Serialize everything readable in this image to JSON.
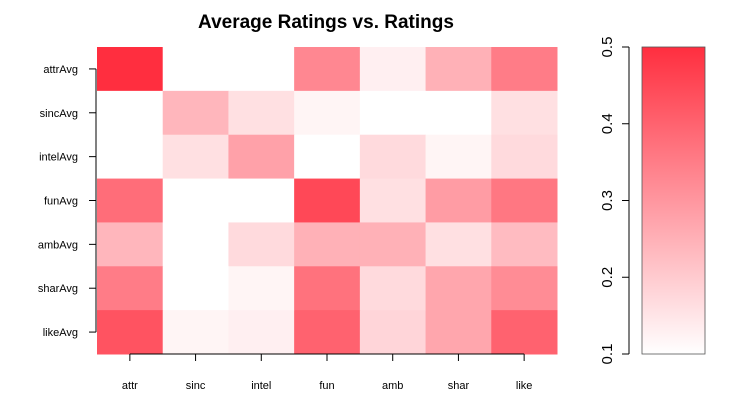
{
  "chart_data": {
    "type": "heatmap",
    "title": "Average Ratings vs. Ratings",
    "xlabel": "",
    "ylabel": "",
    "x_categories": [
      "attr",
      "sinc",
      "intel",
      "fun",
      "amb",
      "shar",
      "like"
    ],
    "y_categories": [
      "attrAvg",
      "sincAvg",
      "intelAvg",
      "funAvg",
      "ambAvg",
      "sharAvg",
      "likeAvg"
    ],
    "values": [
      [
        0.5,
        0.1,
        0.1,
        0.33,
        0.13,
        0.25,
        0.35
      ],
      [
        0.1,
        0.24,
        0.16,
        0.12,
        0.1,
        0.1,
        0.16
      ],
      [
        0.1,
        0.16,
        0.28,
        0.1,
        0.17,
        0.12,
        0.17
      ],
      [
        0.38,
        0.1,
        0.1,
        0.45,
        0.16,
        0.29,
        0.36
      ],
      [
        0.24,
        0.1,
        0.17,
        0.25,
        0.25,
        0.16,
        0.23
      ],
      [
        0.35,
        0.1,
        0.12,
        0.37,
        0.17,
        0.27,
        0.32
      ],
      [
        0.43,
        0.12,
        0.13,
        0.4,
        0.18,
        0.27,
        0.4
      ]
    ],
    "colorbar": {
      "range": [
        0.1,
        0.5
      ],
      "ticks": [
        "0.1",
        "0.2",
        "0.3",
        "0.4",
        "0.5"
      ],
      "low_color": "#ffffff",
      "high_color": "#ff2e3f",
      "placement": "right"
    }
  }
}
